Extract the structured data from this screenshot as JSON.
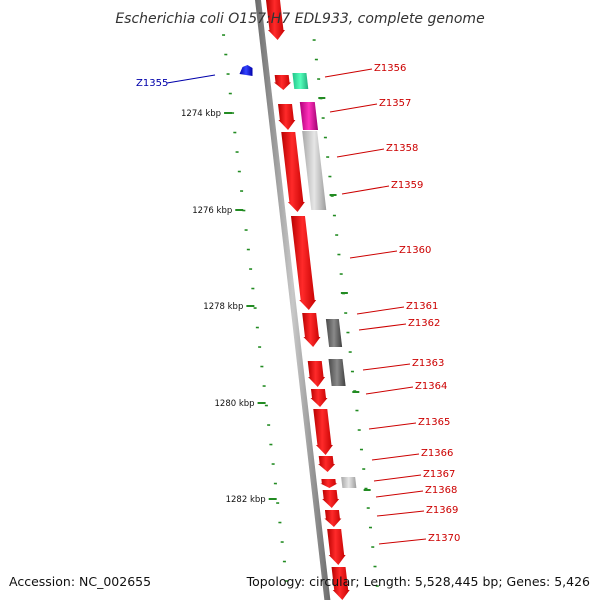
{
  "title": "Escherichia coli O157:H7 EDL933, complete genome",
  "footer": {
    "accession": "Accession: NC_002655",
    "summary": "Topology: circular; Length: 5,528,445 bp; Genes: 5,426"
  },
  "colors": {
    "backbone": "#888888",
    "gene_red": "#ee1111",
    "tick_green": "#228b22",
    "label_red": "#cc0000",
    "label_blue": "#0000aa"
  },
  "scale_labels": [
    "1274 kbp",
    "1276 kbp",
    "1278 kbp",
    "1280 kbp",
    "1282 kbp"
  ],
  "left_gene_label": "Z1355",
  "gene_labels": [
    "Z1356",
    "Z1357",
    "Z1358",
    "Z1359",
    "Z1360",
    "Z1361",
    "Z1362",
    "Z1363",
    "Z1364",
    "Z1365",
    "Z1366",
    "Z1367",
    "Z1368",
    "Z1369",
    "Z1370"
  ]
}
